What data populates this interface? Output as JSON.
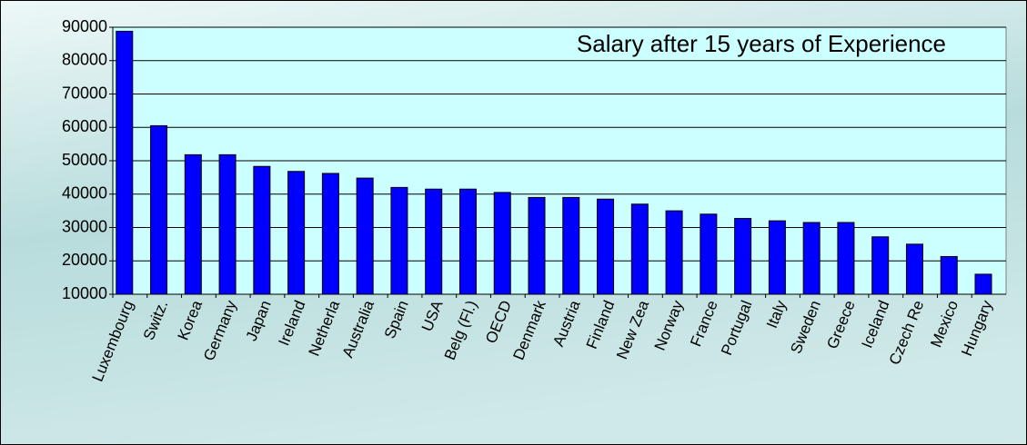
{
  "chart_data": {
    "type": "bar",
    "title": "Salary after 15 years of Experience",
    "categories": [
      "Luxembourg",
      "Switz.",
      "Korea",
      "Germany",
      "Japan",
      "Ireland",
      "Netherla",
      "Australia",
      "Spain",
      "USA",
      "Belg (Fl.)",
      "OECD",
      "Denmark",
      "Austria",
      "Finland",
      "New Zea",
      "Norway",
      "France",
      "Portugal",
      "Italy",
      "Sweden",
      "Greece",
      "Iceland",
      "Czech Re",
      "Mexico",
      "Hungary"
    ],
    "values": [
      88800,
      60500,
      51800,
      51800,
      48300,
      46800,
      46200,
      44800,
      42000,
      41500,
      41500,
      40500,
      39000,
      39000,
      38500,
      37000,
      35000,
      34000,
      32700,
      32000,
      31500,
      31500,
      27200,
      25000,
      21300,
      16000
    ],
    "color": "#0000ff",
    "ylim": [
      10000,
      90000
    ],
    "yticks": [
      10000,
      20000,
      30000,
      40000,
      50000,
      60000,
      70000,
      80000,
      90000
    ],
    "grid": true
  }
}
